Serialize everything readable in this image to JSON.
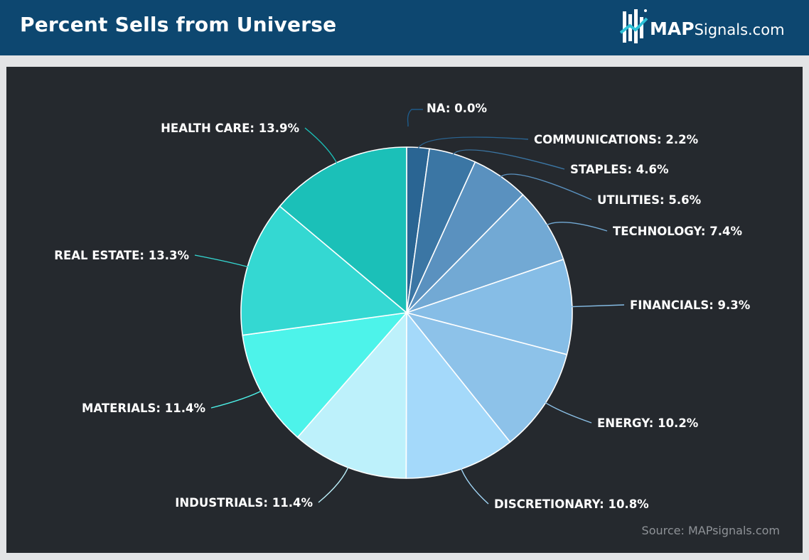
{
  "header": {
    "title": "Percent Sells from Universe",
    "logo_bold": "MAP",
    "logo_rest": "Signals.com",
    "background_color": "#0d4770"
  },
  "source": "Source: MAPsignals.com",
  "chart_data": {
    "type": "pie",
    "title": "Percent Sells from Universe",
    "unit": "%",
    "slices": [
      {
        "label": "NA",
        "value": 0.0,
        "display": "NA: 0.0%",
        "color": "#1e5b8a"
      },
      {
        "label": "COMMUNICATIONS",
        "value": 2.2,
        "display": "COMMUNICATIONS: 2.2%",
        "color": "#2a6593"
      },
      {
        "label": "STAPLES",
        "value": 4.6,
        "display": "STAPLES: 4.6%",
        "color": "#3b76a4"
      },
      {
        "label": "UTILITIES",
        "value": 5.6,
        "display": "UTILITIES: 5.6%",
        "color": "#5a91bf"
      },
      {
        "label": "TECHNOLOGY",
        "value": 7.4,
        "display": "TECHNOLOGY: 7.4%",
        "color": "#72a9d4"
      },
      {
        "label": "FINANCIALS",
        "value": 9.3,
        "display": "FINANCIALS: 9.3%",
        "color": "#86bde6"
      },
      {
        "label": "ENERGY",
        "value": 10.2,
        "display": "ENERGY: 10.2%",
        "color": "#8dc2e9"
      },
      {
        "label": "DISCRETIONARY",
        "value": 10.8,
        "display": "DISCRETIONARY: 10.8%",
        "color": "#a4d9fa"
      },
      {
        "label": "INDUSTRIALS",
        "value": 11.4,
        "display": "INDUSTRIALS: 11.4%",
        "color": "#bdf1fb"
      },
      {
        "label": "MATERIALS",
        "value": 11.4,
        "display": "MATERIALS: 11.4%",
        "color": "#4df3ea"
      },
      {
        "label": "REAL ESTATE",
        "value": 13.3,
        "display": "REAL ESTATE: 13.3%",
        "color": "#34d8d2"
      },
      {
        "label": "HEALTH CARE",
        "value": 13.9,
        "display": "HEALTH CARE: 13.9%",
        "color": "#1bc0b8"
      }
    ]
  }
}
